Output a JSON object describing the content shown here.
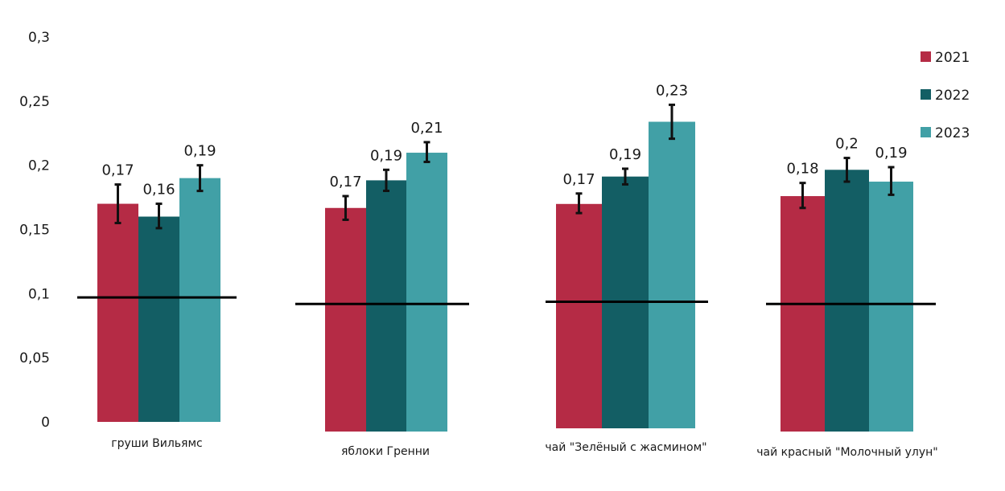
{
  "chart_data": {
    "type": "bar",
    "categories": [
      "груши Вильямс",
      "яблоки Гренни",
      "чай \"Зелёный с жасмином\"",
      "чай красный \"Молочный улун\""
    ],
    "series": [
      {
        "name": "2021",
        "color": "#b52b45",
        "values": [
          0.17,
          0.17,
          0.172,
          0.179
        ],
        "labels": [
          "0,17",
          "0,17",
          "0,17",
          "0,18"
        ],
        "err_low": [
          0.155,
          0.161,
          0.165,
          0.17
        ],
        "err_high": [
          0.185,
          0.179,
          0.18,
          0.189
        ]
      },
      {
        "name": "2022",
        "color": "#135e64",
        "values": [
          0.16,
          0.191,
          0.193,
          0.199
        ],
        "labels": [
          "0,16",
          "0,19",
          "0,19",
          "0,2"
        ],
        "err_low": [
          0.151,
          0.183,
          0.187,
          0.19
        ],
        "err_high": [
          0.17,
          0.199,
          0.199,
          0.208
        ]
      },
      {
        "name": "2023",
        "color": "#41a0a6",
        "values": [
          0.19,
          0.212,
          0.235,
          0.19
        ],
        "labels": [
          "0,19",
          "0,21",
          "0,23",
          "0,19"
        ],
        "err_low": [
          0.18,
          0.205,
          0.222,
          0.18
        ],
        "err_high": [
          0.2,
          0.22,
          0.248,
          0.201
        ]
      }
    ],
    "reference_line": 0.097,
    "ylim": [
      0,
      0.3
    ],
    "y_ticks": [
      {
        "value": 0,
        "label": "0"
      },
      {
        "value": 0.05,
        "label": "0,05"
      },
      {
        "value": 0.1,
        "label": "0,1"
      },
      {
        "value": 0.15,
        "label": "0,15"
      },
      {
        "value": 0.2,
        "label": "0,2"
      },
      {
        "value": 0.25,
        "label": "0,25"
      },
      {
        "value": 0.3,
        "label": "0,3"
      }
    ],
    "legend_position": "top-right",
    "grid": false,
    "title": "",
    "xlabel": "",
    "ylabel": ""
  }
}
